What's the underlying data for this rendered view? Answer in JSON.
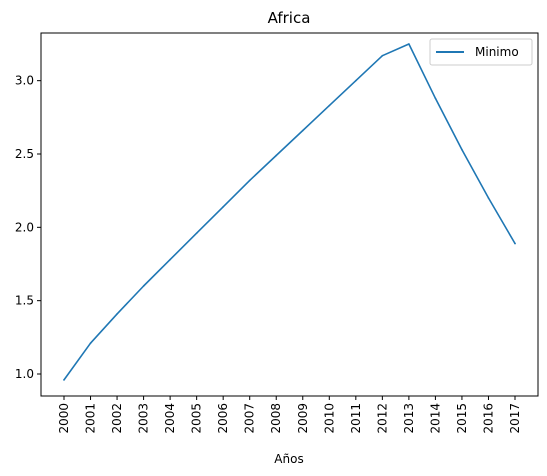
{
  "chart_data": {
    "type": "line",
    "title": "Africa",
    "xlabel": "Años",
    "ylabel": "",
    "categories": [
      "2000",
      "2001",
      "2002",
      "2003",
      "2004",
      "2005",
      "2006",
      "2007",
      "2008",
      "2009",
      "2010",
      "2011",
      "2012",
      "2013",
      "2014",
      "2015",
      "2016",
      "2017"
    ],
    "series": [
      {
        "name": "Minimo",
        "color": "#1f77b4",
        "values": [
          0.96,
          1.21,
          1.41,
          1.6,
          1.78,
          1.96,
          2.14,
          2.32,
          2.49,
          2.66,
          2.83,
          3.0,
          3.17,
          3.25,
          2.88,
          2.53,
          2.2,
          1.89
        ]
      }
    ],
    "ylim": [
      0.85,
      3.325
    ],
    "yticks": [
      1.0,
      1.5,
      2.0,
      2.5,
      3.0
    ],
    "ytick_labels": [
      "1.0",
      "1.5",
      "2.0",
      "2.5",
      "3.0"
    ],
    "legend_position": "top-right",
    "grid": false
  }
}
